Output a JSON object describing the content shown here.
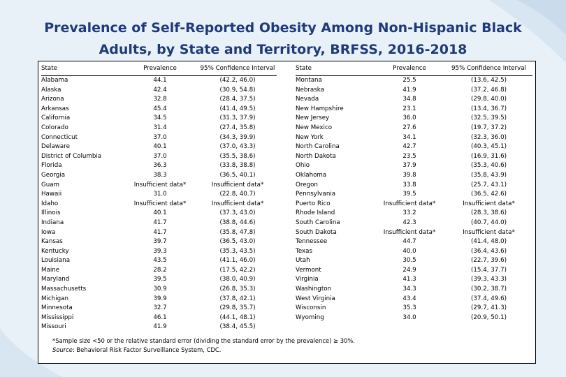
{
  "title_line1": "Prevalence of Self-Reported Obesity Among Non-Hispanic Black",
  "title_line2": "Adults, by State and Territory, BRFSS, 2016-2018",
  "headers": {
    "state": "State",
    "prevalence": "Prevalence",
    "ci": "95% Confidence Interval"
  },
  "left_rows": [
    {
      "state": "Alabama",
      "prev": "44.1",
      "ci": "(42.2, 46.0)"
    },
    {
      "state": "Alaska",
      "prev": "42.4",
      "ci": "(30.9, 54.8)"
    },
    {
      "state": "Arizona",
      "prev": "32.8",
      "ci": "(28.4, 37.5)"
    },
    {
      "state": "Arkansas",
      "prev": "45.4",
      "ci": "(41.4, 49.5)"
    },
    {
      "state": "California",
      "prev": "34.5",
      "ci": "(31.3, 37.9)"
    },
    {
      "state": "Colorado",
      "prev": "31.4",
      "ci": "(27.4, 35.8)"
    },
    {
      "state": "Connecticut",
      "prev": "37.0",
      "ci": "(34.3, 39.9)"
    },
    {
      "state": "Delaware",
      "prev": "40.1",
      "ci": "(37.0, 43.3)"
    },
    {
      "state": "District of Columbia",
      "prev": "37.0",
      "ci": "(35.5, 38.6)"
    },
    {
      "state": "Florida",
      "prev": "36.3",
      "ci": "(33.8, 38.8)"
    },
    {
      "state": "Georgia",
      "prev": "38.3",
      "ci": "(36.5, 40.1)"
    },
    {
      "state": "Guam",
      "prev": "Insufficient data*",
      "ci": "Insufficient data*"
    },
    {
      "state": "Hawaii",
      "prev": "31.0",
      "ci": "(22.8, 40.7)"
    },
    {
      "state": "Idaho",
      "prev": "Insufficient data*",
      "ci": "Insufficient data*"
    },
    {
      "state": "Illinois",
      "prev": "40.1",
      "ci": "(37.3, 43.0)"
    },
    {
      "state": "Indiana",
      "prev": "41.7",
      "ci": "(38.8, 44.6)"
    },
    {
      "state": "Iowa",
      "prev": "41.7",
      "ci": "(35.8, 47.8)"
    },
    {
      "state": "Kansas",
      "prev": "39.7",
      "ci": "(36.5, 43.0)"
    },
    {
      "state": "Kentucky",
      "prev": "39.3",
      "ci": "(35.3, 43.5)"
    },
    {
      "state": "Louisiana",
      "prev": "43.5",
      "ci": "(41.1, 46.0)"
    },
    {
      "state": "Maine",
      "prev": "28.2",
      "ci": "(17.5, 42.2)"
    },
    {
      "state": "Maryland",
      "prev": "39.5",
      "ci": "(38.0, 40.9)"
    },
    {
      "state": "Massachusetts",
      "prev": "30.9",
      "ci": "(26.8, 35.3)"
    },
    {
      "state": "Michigan",
      "prev": "39.9",
      "ci": "(37.8, 42.1)"
    },
    {
      "state": "Minnesota",
      "prev": "32.7",
      "ci": "(29.8, 35.7)"
    },
    {
      "state": "Mississippi",
      "prev": "46.1",
      "ci": "(44.1, 48.1)"
    },
    {
      "state": "Missouri",
      "prev": "41.9",
      "ci": "(38.4, 45.5)"
    }
  ],
  "right_rows": [
    {
      "state": "Montana",
      "prev": "25.5",
      "ci": "(13.6, 42.5)"
    },
    {
      "state": "Nebraska",
      "prev": "41.9",
      "ci": "(37.2, 46.8)"
    },
    {
      "state": "Nevada",
      "prev": "34.8",
      "ci": "(29.8, 40.0)"
    },
    {
      "state": "New Hampshire",
      "prev": "23.1",
      "ci": "(13.4, 36.7)"
    },
    {
      "state": "New Jersey",
      "prev": "36.0",
      "ci": "(32.5, 39.5)"
    },
    {
      "state": "New Mexico",
      "prev": "27.6",
      "ci": "(19.7, 37.2)"
    },
    {
      "state": "New York",
      "prev": "34.1",
      "ci": "(32.3, 36.0)"
    },
    {
      "state": "North Carolina",
      "prev": "42.7",
      "ci": "(40.3, 45.1)"
    },
    {
      "state": "North Dakota",
      "prev": "23.5",
      "ci": "(16.9, 31.6)"
    },
    {
      "state": "Ohio",
      "prev": "37.9",
      "ci": "(35.3, 40.6)"
    },
    {
      "state": "Oklahoma",
      "prev": "39.8",
      "ci": "(35.8, 43.9)"
    },
    {
      "state": "Oregon",
      "prev": "33.8",
      "ci": "(25.7, 43.1)"
    },
    {
      "state": "Pennsylvania",
      "prev": "39.5",
      "ci": "(36.5, 42.6)"
    },
    {
      "state": "Puerto Rico",
      "prev": "Insufficient data*",
      "ci": "Insufficient data*"
    },
    {
      "state": "Rhode Island",
      "prev": "33.2",
      "ci": "(28.3, 38.6)"
    },
    {
      "state": "South Carolina",
      "prev": "42.3",
      "ci": "(40.7, 44.0)"
    },
    {
      "state": "South Dakota",
      "prev": "Insufficient data*",
      "ci": "Insufficient data*"
    },
    {
      "state": "Tennessee",
      "prev": "44.7",
      "ci": "(41.4, 48.0)"
    },
    {
      "state": "Texas",
      "prev": "40.0",
      "ci": "(36.4, 43.6)"
    },
    {
      "state": "Utah",
      "prev": "30.5",
      "ci": "(22.7, 39.6)"
    },
    {
      "state": "Vermont",
      "prev": "24.9",
      "ci": "(15.4, 37.7)"
    },
    {
      "state": "Virginia",
      "prev": "41.3",
      "ci": "(39.3, 43.3)"
    },
    {
      "state": "Washington",
      "prev": "34.3",
      "ci": "(30.2, 38.7)"
    },
    {
      "state": "West Virginia",
      "prev": "43.4",
      "ci": "(37.4, 49.6)"
    },
    {
      "state": "Wisconsin",
      "prev": "35.3",
      "ci": "(29.7, 41.3)"
    },
    {
      "state": "Wyoming",
      "prev": "34.0",
      "ci": "(20.9, 50.1)"
    }
  ],
  "footnote": {
    "line1": "*Sample size <50 or the relative standard error (dividing the standard error by the prevalence) ≥ 30%.",
    "source_label": "Source",
    "source_text": ": Behavioral Risk Factor Surveillance System, CDC."
  },
  "colors": {
    "title": "#1f3a78",
    "background": "#e9f1f8"
  }
}
